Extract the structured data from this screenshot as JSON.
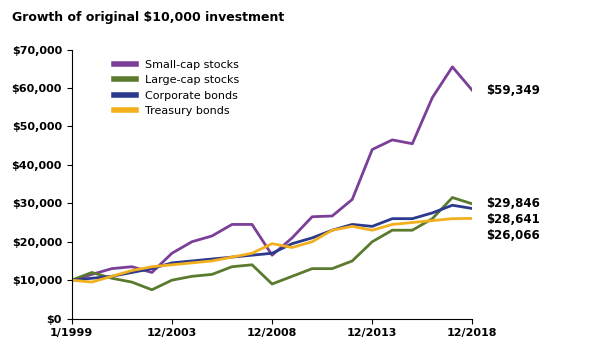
{
  "chart_data": {
    "type": "line",
    "title": "Growth of original $10,000 investment",
    "x": [
      1999,
      2000,
      2001,
      2002,
      2003,
      2004,
      2005,
      2006,
      2007,
      2008,
      2009,
      2010,
      2011,
      2012,
      2013,
      2014,
      2015,
      2016,
      2017,
      2018,
      2019
    ],
    "series": [
      {
        "name": "Small-cap stocks",
        "color": "#7b3f98",
        "values": [
          10000,
          11500,
          13000,
          13500,
          12000,
          17000,
          20000,
          21500,
          24500,
          24500,
          16500,
          21000,
          26500,
          26700,
          31000,
          44000,
          46500,
          45500,
          57500,
          65500,
          59349
        ],
        "value_labels": [
          null,
          null,
          null,
          null,
          null,
          null,
          null,
          null,
          null,
          null,
          null,
          null,
          null,
          null,
          null,
          null,
          null,
          null,
          null,
          null,
          "$59,349"
        ]
      },
      {
        "name": "Large-cap stocks",
        "color": "#5a7a2e",
        "values": [
          10000,
          12000,
          10500,
          9500,
          7500,
          10000,
          11000,
          11500,
          13500,
          14000,
          9000,
          11000,
          13000,
          13000,
          15000,
          20000,
          23000,
          23000,
          26000,
          31500,
          29846
        ],
        "value_labels": [
          null,
          null,
          null,
          null,
          null,
          null,
          null,
          null,
          null,
          null,
          null,
          null,
          null,
          null,
          null,
          null,
          null,
          null,
          null,
          null,
          "$29,846"
        ]
      },
      {
        "name": "Corporate bonds",
        "color": "#2b3a8c",
        "values": [
          10000,
          10500,
          11000,
          12000,
          13000,
          14500,
          15000,
          15500,
          16000,
          16500,
          17000,
          19500,
          21000,
          23000,
          24500,
          24000,
          26000,
          26000,
          27500,
          29500,
          28641
        ],
        "value_labels": [
          null,
          null,
          null,
          null,
          null,
          null,
          null,
          null,
          null,
          null,
          null,
          null,
          null,
          null,
          null,
          null,
          null,
          null,
          null,
          null,
          "$28,641"
        ]
      },
      {
        "name": "Treasury bonds",
        "color": "#f2b01e",
        "values": [
          10000,
          9500,
          11000,
          12500,
          13500,
          14000,
          14500,
          15000,
          16000,
          17000,
          19500,
          18500,
          20000,
          23000,
          24000,
          23000,
          24500,
          25000,
          25500,
          26000,
          26066
        ],
        "value_labels": [
          null,
          null,
          null,
          null,
          null,
          null,
          null,
          null,
          null,
          null,
          null,
          null,
          null,
          null,
          null,
          null,
          null,
          null,
          null,
          null,
          "$26,066"
        ]
      }
    ],
    "xlim": [
      1999,
      2019
    ],
    "xticks": [
      {
        "value": 1999,
        "label": "1/1999"
      },
      {
        "value": 2004,
        "label": "12/2003"
      },
      {
        "value": 2009,
        "label": "12/2008"
      },
      {
        "value": 2014,
        "label": "12/2013"
      },
      {
        "value": 2019,
        "label": "12/2018"
      }
    ],
    "ylim": [
      0,
      70000
    ],
    "yticks": [
      {
        "value": 0,
        "label": "$0"
      },
      {
        "value": 10000,
        "label": "$10,000"
      },
      {
        "value": 20000,
        "label": "$20,000"
      },
      {
        "value": 30000,
        "label": "$30,000"
      },
      {
        "value": 40000,
        "label": "$40,000"
      },
      {
        "value": 50000,
        "label": "$50,000"
      },
      {
        "value": 60000,
        "label": "$60,000"
      },
      {
        "value": 70000,
        "label": "$70,000"
      }
    ],
    "grid": false,
    "legend": "upper left",
    "data_labels": true
  }
}
